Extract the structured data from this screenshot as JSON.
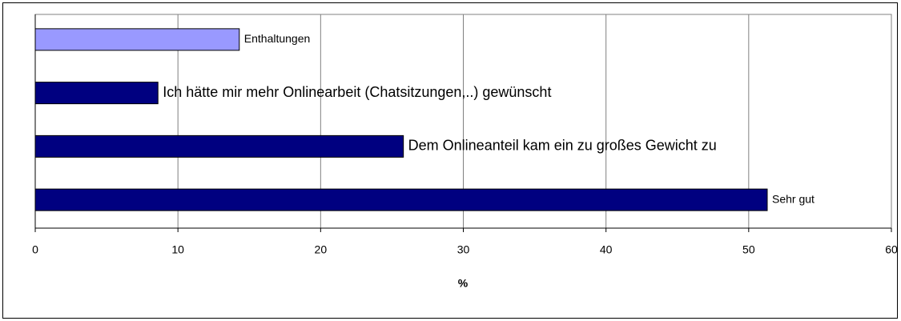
{
  "chart_data": {
    "type": "bar",
    "orientation": "horizontal",
    "categories": [
      "Enthaltungen",
      "Ich hätte mir mehr Onlinearbeit (Chatsitzungen,..) gewünscht",
      "Dem Onlineanteil kam ein zu großes Gewicht zu",
      "Sehr gut"
    ],
    "values": [
      14.3,
      8.6,
      25.8,
      51.3
    ],
    "colors": [
      "#9999ff",
      "#000080",
      "#000080",
      "#000080"
    ],
    "xlabel": "%",
    "xlim": [
      0,
      60
    ],
    "xticks": [
      0,
      10,
      20,
      30,
      40,
      50,
      60
    ],
    "grid": true
  }
}
